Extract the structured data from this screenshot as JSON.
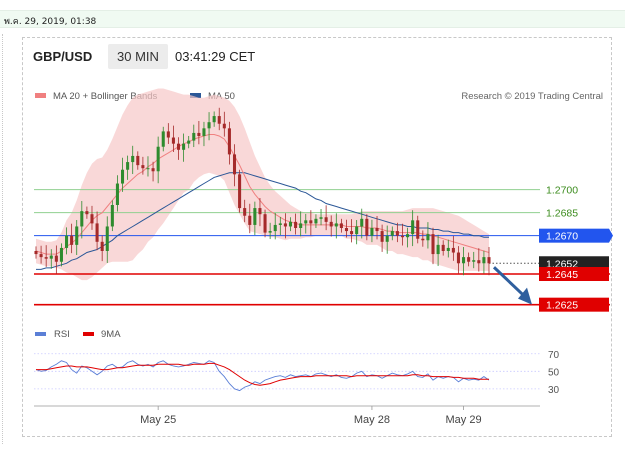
{
  "header": {
    "date": "พ.ค. 29, 2019, 01:38",
    "pair": "GBP/USD",
    "timeframe": "30 MIN",
    "time": "03:41:29 CET"
  },
  "legend": {
    "ma20": {
      "label": "MA 20 + Bollinger Bands",
      "color": "#f08080"
    },
    "ma50": {
      "label": "MA 50",
      "color": "#2b5797"
    },
    "credit": "Research © 2019 Trading Central"
  },
  "rsi_legend": {
    "rsi": {
      "label": "RSI",
      "color": "#5b7fd6"
    },
    "ma9": {
      "label": "9MA",
      "color": "#e00000"
    }
  },
  "colors": {
    "up": "#2e8b2e",
    "down": "#a52a2a",
    "support": "#e00000",
    "resistance": "#2255ee",
    "target_green": "#90d090",
    "arrow": "#2f5f9e"
  },
  "chart_data": [
    {
      "type": "candlestick",
      "x_tick_labels": [
        "May 25",
        "May 28",
        "May 29"
      ],
      "ylim": [
        1.2615,
        1.2765
      ],
      "levels": [
        {
          "label": "1.2700",
          "value": 1.27,
          "kind": "target"
        },
        {
          "label": "1.2685",
          "value": 1.2685,
          "kind": "target"
        },
        {
          "label": "1.2670",
          "value": 1.267,
          "kind": "resistance"
        },
        {
          "label": "1.2652",
          "value": 1.2652,
          "kind": "last"
        },
        {
          "label": "1.2645",
          "value": 1.2645,
          "kind": "support"
        },
        {
          "label": "1.2625",
          "value": 1.2625,
          "kind": "support"
        }
      ],
      "close": [
        1.2658,
        1.2656,
        1.2655,
        1.2657,
        1.2653,
        1.2662,
        1.267,
        1.2664,
        1.2676,
        1.2686,
        1.2684,
        1.2678,
        1.2666,
        1.266,
        1.2676,
        1.269,
        1.2704,
        1.2713,
        1.2718,
        1.2722,
        1.2716,
        1.2714,
        1.2714,
        1.2712,
        1.2728,
        1.2738,
        1.2734,
        1.273,
        1.2726,
        1.273,
        1.2732,
        1.2737,
        1.2735,
        1.274,
        1.2744,
        1.2748,
        1.2743,
        1.274,
        1.2723,
        1.271,
        1.2688,
        1.2683,
        1.2677,
        1.2688,
        1.2684,
        1.2672,
        1.2673,
        1.2677,
        1.2678,
        1.2676,
        1.2679,
        1.2675,
        1.2678,
        1.268,
        1.2678,
        1.2681,
        1.2682,
        1.2679,
        1.2676,
        1.2678,
        1.2675,
        1.2673,
        1.2671,
        1.2676,
        1.2681,
        1.267,
        1.2675,
        1.2673,
        1.2666,
        1.267,
        1.2673,
        1.267,
        1.2669,
        1.2671,
        1.268,
        1.2668,
        1.2667,
        1.2671,
        1.2658,
        1.2664,
        1.266,
        1.2662,
        1.2659,
        1.2652,
        1.2656,
        1.2653,
        1.2654,
        1.2652,
        1.2656,
        1.2652
      ],
      "ma20": [
        1.266,
        1.2659,
        1.2658,
        1.2658,
        1.2658,
        1.266,
        1.2663,
        1.2665,
        1.2668,
        1.2672,
        1.2676,
        1.268,
        1.2683,
        1.2685,
        1.2689,
        1.2693,
        1.2697,
        1.2701,
        1.2704,
        1.2707,
        1.271,
        1.2712,
        1.2715,
        1.2717,
        1.272,
        1.2722,
        1.2724,
        1.2726,
        1.2728,
        1.273,
        1.2731,
        1.2733,
        1.2734,
        1.2735,
        1.2736,
        1.2736,
        1.2735,
        1.2733,
        1.2728,
        1.2722,
        1.2716,
        1.2709,
        1.2702,
        1.2697,
        1.2693,
        1.2689,
        1.2686,
        1.2684,
        1.2682,
        1.268,
        1.2679,
        1.2678,
        1.2677,
        1.2677,
        1.2677,
        1.2677,
        1.2677,
        1.2677,
        1.2677,
        1.2677,
        1.2677,
        1.2676,
        1.2676,
        1.2676,
        1.2676,
        1.2675,
        1.2675,
        1.2675,
        1.2674,
        1.2673,
        1.2673,
        1.2672,
        1.2672,
        1.2672,
        1.2672,
        1.2672,
        1.2671,
        1.2671,
        1.267,
        1.2669,
        1.2668,
        1.2667,
        1.2666,
        1.2665,
        1.2664,
        1.2663,
        1.2662,
        1.2661,
        1.266,
        1.2659
      ],
      "bb_upper": [
        1.2668,
        1.2667,
        1.2666,
        1.2666,
        1.2667,
        1.2672,
        1.268,
        1.2685,
        1.2693,
        1.2703,
        1.2711,
        1.2717,
        1.272,
        1.2721,
        1.2726,
        1.2733,
        1.2741,
        1.2749,
        1.2755,
        1.276,
        1.2762,
        1.2763,
        1.2764,
        1.2765,
        1.2766,
        1.2766,
        1.2765,
        1.2764,
        1.2763,
        1.2762,
        1.2762,
        1.2761,
        1.276,
        1.276,
        1.2761,
        1.2762,
        1.2761,
        1.276,
        1.2758,
        1.2754,
        1.2748,
        1.274,
        1.2731,
        1.2722,
        1.2715,
        1.2708,
        1.2703,
        1.2699,
        1.2696,
        1.2693,
        1.269,
        1.2688,
        1.2686,
        1.2685,
        1.2685,
        1.2684,
        1.2684,
        1.2684,
        1.2684,
        1.2684,
        1.2684,
        1.2684,
        1.2684,
        1.2685,
        1.2686,
        1.2686,
        1.2686,
        1.2686,
        1.2686,
        1.2686,
        1.2686,
        1.2686,
        1.2686,
        1.2687,
        1.2688,
        1.2688,
        1.2688,
        1.2688,
        1.2688,
        1.2687,
        1.2686,
        1.2685,
        1.2684,
        1.2683,
        1.2681,
        1.2679,
        1.2677,
        1.2675,
        1.2673,
        1.2671
      ],
      "bb_lower": [
        1.2652,
        1.2651,
        1.265,
        1.265,
        1.2649,
        1.2648,
        1.2646,
        1.2645,
        1.2643,
        1.2641,
        1.2641,
        1.2643,
        1.2646,
        1.2649,
        1.2652,
        1.2653,
        1.2653,
        1.2653,
        1.2653,
        1.2654,
        1.2658,
        1.2661,
        1.2666,
        1.2669,
        1.2674,
        1.2678,
        1.2683,
        1.2688,
        1.2693,
        1.2698,
        1.27,
        1.2705,
        1.2708,
        1.271,
        1.2711,
        1.271,
        1.2709,
        1.2706,
        1.2698,
        1.269,
        1.2684,
        1.2678,
        1.2673,
        1.2672,
        1.2671,
        1.267,
        1.2669,
        1.2669,
        1.2668,
        1.2667,
        1.2668,
        1.2668,
        1.2668,
        1.2669,
        1.2669,
        1.267,
        1.267,
        1.267,
        1.267,
        1.267,
        1.267,
        1.2668,
        1.2668,
        1.2667,
        1.2666,
        1.2664,
        1.2664,
        1.2664,
        1.2662,
        1.266,
        1.266,
        1.2658,
        1.2658,
        1.2657,
        1.2656,
        1.2656,
        1.2654,
        1.2654,
        1.2652,
        1.2651,
        1.265,
        1.2649,
        1.2648,
        1.2647,
        1.2647,
        1.2647,
        1.2647,
        1.2647,
        1.2647,
        1.2647
      ],
      "ma50": [
        1.2648,
        1.2648,
        1.2649,
        1.2649,
        1.265,
        1.2651,
        1.2652,
        1.2654,
        1.2655,
        1.2657,
        1.2659,
        1.266,
        1.2661,
        1.2663,
        1.2665,
        1.2667,
        1.267,
        1.2672,
        1.2674,
        1.2676,
        1.2678,
        1.268,
        1.2682,
        1.2684,
        1.2686,
        1.2688,
        1.269,
        1.2692,
        1.2694,
        1.2696,
        1.2698,
        1.27,
        1.2702,
        1.2704,
        1.2706,
        1.2708,
        1.2709,
        1.271,
        1.2711,
        1.2711,
        1.2711,
        1.2711,
        1.271,
        1.2709,
        1.2708,
        1.2707,
        1.2706,
        1.2705,
        1.2704,
        1.2703,
        1.2702,
        1.2701,
        1.2699,
        1.2698,
        1.2696,
        1.2694,
        1.2693,
        1.2691,
        1.269,
        1.2689,
        1.2688,
        1.2687,
        1.2686,
        1.2685,
        1.2684,
        1.2683,
        1.2682,
        1.2681,
        1.268,
        1.2679,
        1.2678,
        1.2677,
        1.2677,
        1.2676,
        1.2676,
        1.2675,
        1.2675,
        1.2675,
        1.2674,
        1.2674,
        1.2673,
        1.2673,
        1.2672,
        1.2672,
        1.2671,
        1.2671,
        1.267,
        1.267,
        1.2669,
        1.2669
      ]
    },
    {
      "type": "line",
      "title": "RSI",
      "y_tick_labels": [
        "70",
        "50",
        "30"
      ],
      "ylim": [
        15,
        80
      ],
      "levels": [
        70,
        50,
        30
      ],
      "series": [
        {
          "name": "RSI",
          "values": [
            52,
            50,
            51,
            55,
            58,
            62,
            60,
            52,
            48,
            56,
            54,
            50,
            46,
            50,
            56,
            58,
            54,
            55,
            60,
            62,
            58,
            56,
            58,
            55,
            60,
            62,
            58,
            56,
            55,
            56,
            58,
            60,
            59,
            58,
            62,
            60,
            50,
            44,
            36,
            30,
            28,
            32,
            34,
            38,
            36,
            40,
            42,
            44,
            45,
            43,
            46,
            44,
            45,
            46,
            44,
            47,
            48,
            46,
            44,
            46,
            43,
            42,
            44,
            48,
            50,
            44,
            46,
            45,
            42,
            45,
            48,
            46,
            45,
            47,
            50,
            44,
            43,
            47,
            40,
            44,
            42,
            44,
            43,
            38,
            42,
            40,
            41,
            40,
            44,
            40
          ]
        },
        {
          "name": "9MA",
          "values": [
            52,
            52,
            52,
            53,
            54,
            55,
            56,
            56,
            55,
            55,
            55,
            54,
            53,
            52,
            52,
            53,
            54,
            54,
            55,
            56,
            57,
            57,
            57,
            57,
            58,
            58,
            58,
            58,
            58,
            57,
            57,
            58,
            58,
            58,
            59,
            59,
            57,
            55,
            52,
            48,
            44,
            40,
            37,
            35,
            34,
            35,
            36,
            38,
            40,
            41,
            42,
            43,
            44,
            44,
            44,
            45,
            45,
            45,
            45,
            45,
            45,
            45,
            44,
            45,
            45,
            45,
            45,
            45,
            45,
            45,
            45,
            45,
            45,
            45,
            46,
            46,
            45,
            45,
            44,
            44,
            44,
            44,
            43,
            43,
            42,
            42,
            42,
            41,
            41,
            41
          ]
        }
      ]
    }
  ]
}
